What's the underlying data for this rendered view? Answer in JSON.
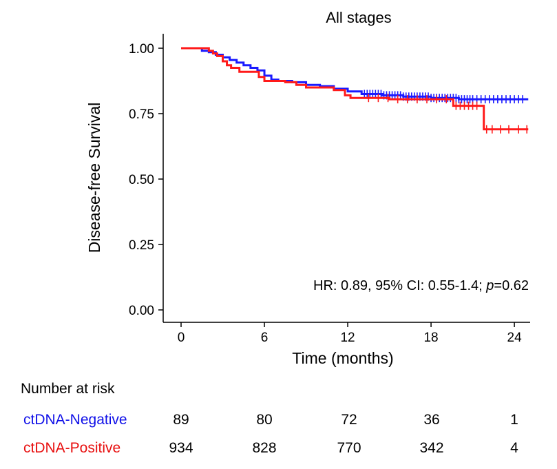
{
  "chart_data": {
    "type": "line",
    "subtype": "kaplan-meier",
    "title": "All stages",
    "xlabel": "Time (months)",
    "ylabel": "Disease-free Survival",
    "xlim": [
      0,
      25
    ],
    "ylim": [
      0,
      1
    ],
    "xticks": [
      "0",
      "6",
      "12",
      "18",
      "24"
    ],
    "yticks": [
      "0.00",
      "0.25",
      "0.50",
      "0.75",
      "1.00"
    ],
    "grid": false,
    "annotation": {
      "prefix": "HR: 0.89, 95% CI: 0.55-1.4; ",
      "p_label": "p",
      "p_value": "=0.62"
    },
    "series": [
      {
        "name": "ctDNA-Negative",
        "color": "#1a1aff",
        "steps": [
          [
            0,
            1.0
          ],
          [
            1.5,
            0.99
          ],
          [
            2.0,
            0.985
          ],
          [
            2.5,
            0.975
          ],
          [
            3.0,
            0.965
          ],
          [
            3.5,
            0.955
          ],
          [
            4.0,
            0.945
          ],
          [
            4.5,
            0.935
          ],
          [
            5.0,
            0.925
          ],
          [
            5.5,
            0.915
          ],
          [
            6.0,
            0.895
          ],
          [
            6.5,
            0.88
          ],
          [
            7.0,
            0.875
          ],
          [
            8.0,
            0.87
          ],
          [
            9.0,
            0.86
          ],
          [
            10.0,
            0.855
          ],
          [
            11.0,
            0.845
          ],
          [
            12.0,
            0.835
          ],
          [
            13.0,
            0.825
          ],
          [
            14.5,
            0.82
          ],
          [
            16.0,
            0.815
          ],
          [
            18.0,
            0.81
          ],
          [
            20.0,
            0.805
          ],
          [
            25.0,
            0.805
          ]
        ],
        "censor_ticks": [
          13.2,
          13.4,
          13.6,
          13.8,
          14.0,
          14.2,
          14.4,
          14.6,
          14.8,
          15.0,
          15.2,
          15.4,
          15.6,
          15.8,
          16.0,
          16.2,
          16.4,
          16.6,
          16.8,
          17.0,
          17.2,
          17.4,
          17.6,
          17.8,
          18.0,
          18.2,
          18.4,
          18.6,
          18.8,
          19.0,
          19.2,
          19.4,
          19.6,
          19.8,
          20.0,
          20.2,
          20.4,
          20.6,
          20.8,
          21.0,
          21.3,
          21.6,
          21.9,
          22.2,
          22.5,
          22.8,
          23.1,
          23.4,
          23.7,
          24.0,
          24.3,
          24.6
        ]
      },
      {
        "name": "ctDNA-Positive",
        "color": "#ff1a1a",
        "steps": [
          [
            0,
            1.0
          ],
          [
            2.0,
            0.99
          ],
          [
            2.3,
            0.98
          ],
          [
            2.6,
            0.97
          ],
          [
            3.0,
            0.95
          ],
          [
            3.3,
            0.935
          ],
          [
            3.6,
            0.925
          ],
          [
            4.2,
            0.91
          ],
          [
            5.6,
            0.89
          ],
          [
            6.0,
            0.875
          ],
          [
            7.5,
            0.87
          ],
          [
            8.3,
            0.86
          ],
          [
            9.0,
            0.85
          ],
          [
            11.0,
            0.84
          ],
          [
            11.8,
            0.82
          ],
          [
            12.2,
            0.81
          ],
          [
            14.0,
            0.81
          ],
          [
            15.0,
            0.805
          ],
          [
            19.6,
            0.78
          ],
          [
            21.8,
            0.69
          ],
          [
            25.0,
            0.69
          ]
        ],
        "censor_ticks": [
          13.5,
          14.2,
          14.9,
          15.6,
          16.3,
          17.0,
          17.7,
          18.4,
          19.1,
          19.8,
          20.1,
          20.4,
          20.7,
          21.0,
          21.3,
          22.0,
          22.4,
          23.0,
          23.6,
          24.3,
          24.9
        ]
      }
    ]
  },
  "risk_table": {
    "title": "Number at risk",
    "times": [
      "0",
      "6",
      "12",
      "18",
      "24"
    ],
    "rows": [
      {
        "label": "ctDNA-Negative",
        "values": [
          "89",
          "80",
          "72",
          "36",
          "1"
        ]
      },
      {
        "label": "ctDNA-Positive",
        "values": [
          "934",
          "828",
          "770",
          "342",
          "4"
        ]
      }
    ]
  }
}
